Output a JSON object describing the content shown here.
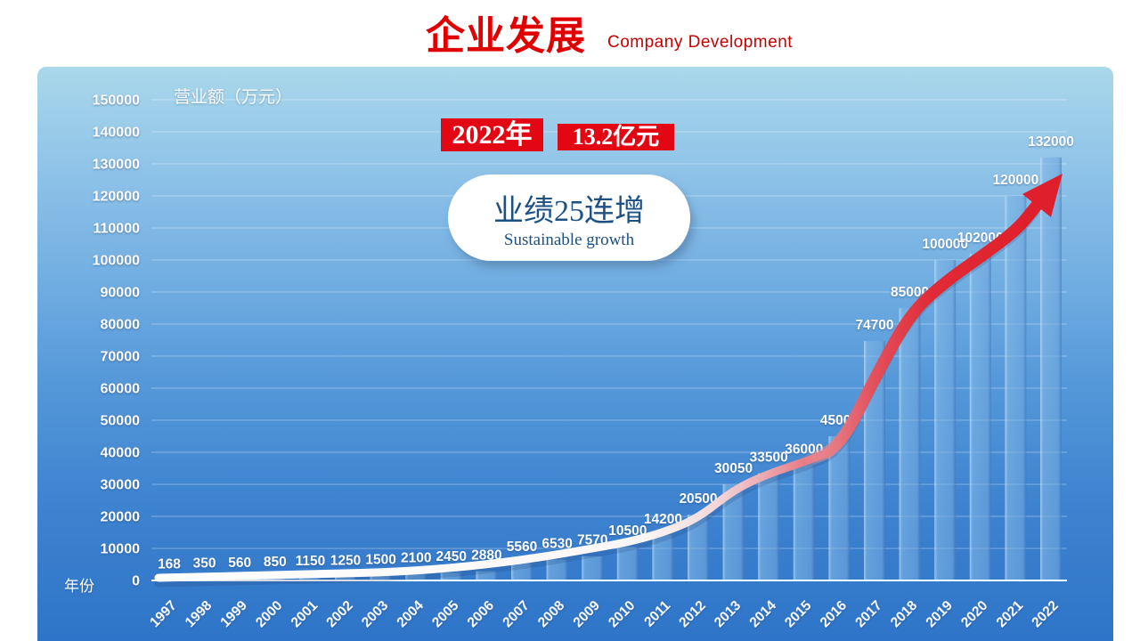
{
  "header": {
    "title": "企业发展",
    "subtitle": "Company Development"
  },
  "badges": {
    "year": "2022年",
    "amount": "13.2亿元"
  },
  "bubble": {
    "line1": "业绩25连增",
    "line2": "Sustainable growth"
  },
  "colors": {
    "accent_red": "#e30613",
    "title_red": "#e10000",
    "bubble_text_blue": "#1d5184",
    "panel_top_blue": "#aad8eb",
    "panel_bottom_blue": "#2e74c8",
    "bar_blue": "#6aa5dc",
    "label_white": "#ffffff"
  },
  "chart_data": {
    "type": "bar",
    "title": "企业发展",
    "subtitle": "Company Development",
    "xlabel": "年份",
    "ylabel": "营业额（万元）",
    "categories": [
      "1997",
      "1998",
      "1999",
      "2000",
      "2001",
      "2002",
      "2003",
      "2004",
      "2005",
      "2006",
      "2007",
      "2008",
      "2009",
      "2010",
      "2011",
      "2012",
      "2013",
      "2014",
      "2015",
      "2016",
      "2017",
      "2018",
      "2019",
      "2020",
      "2021",
      "2022"
    ],
    "values": [
      168,
      350,
      560,
      850,
      1150,
      1250,
      1500,
      2100,
      2450,
      2880,
      5560,
      6530,
      7570,
      10500,
      14200,
      20500,
      30050,
      33500,
      36000,
      45000,
      74700,
      85000,
      100000,
      102000,
      120000,
      132000
    ],
    "ylim": [
      0,
      150000
    ],
    "ytick_step": 10000,
    "grid": true,
    "legend": "none",
    "annotations": {
      "trend_arrow": "white-to-red rising arrow following bar tops",
      "highlight_year": "2022年",
      "highlight_amount": "13.2亿元",
      "callout": "业绩25连增 / Sustainable growth"
    }
  }
}
